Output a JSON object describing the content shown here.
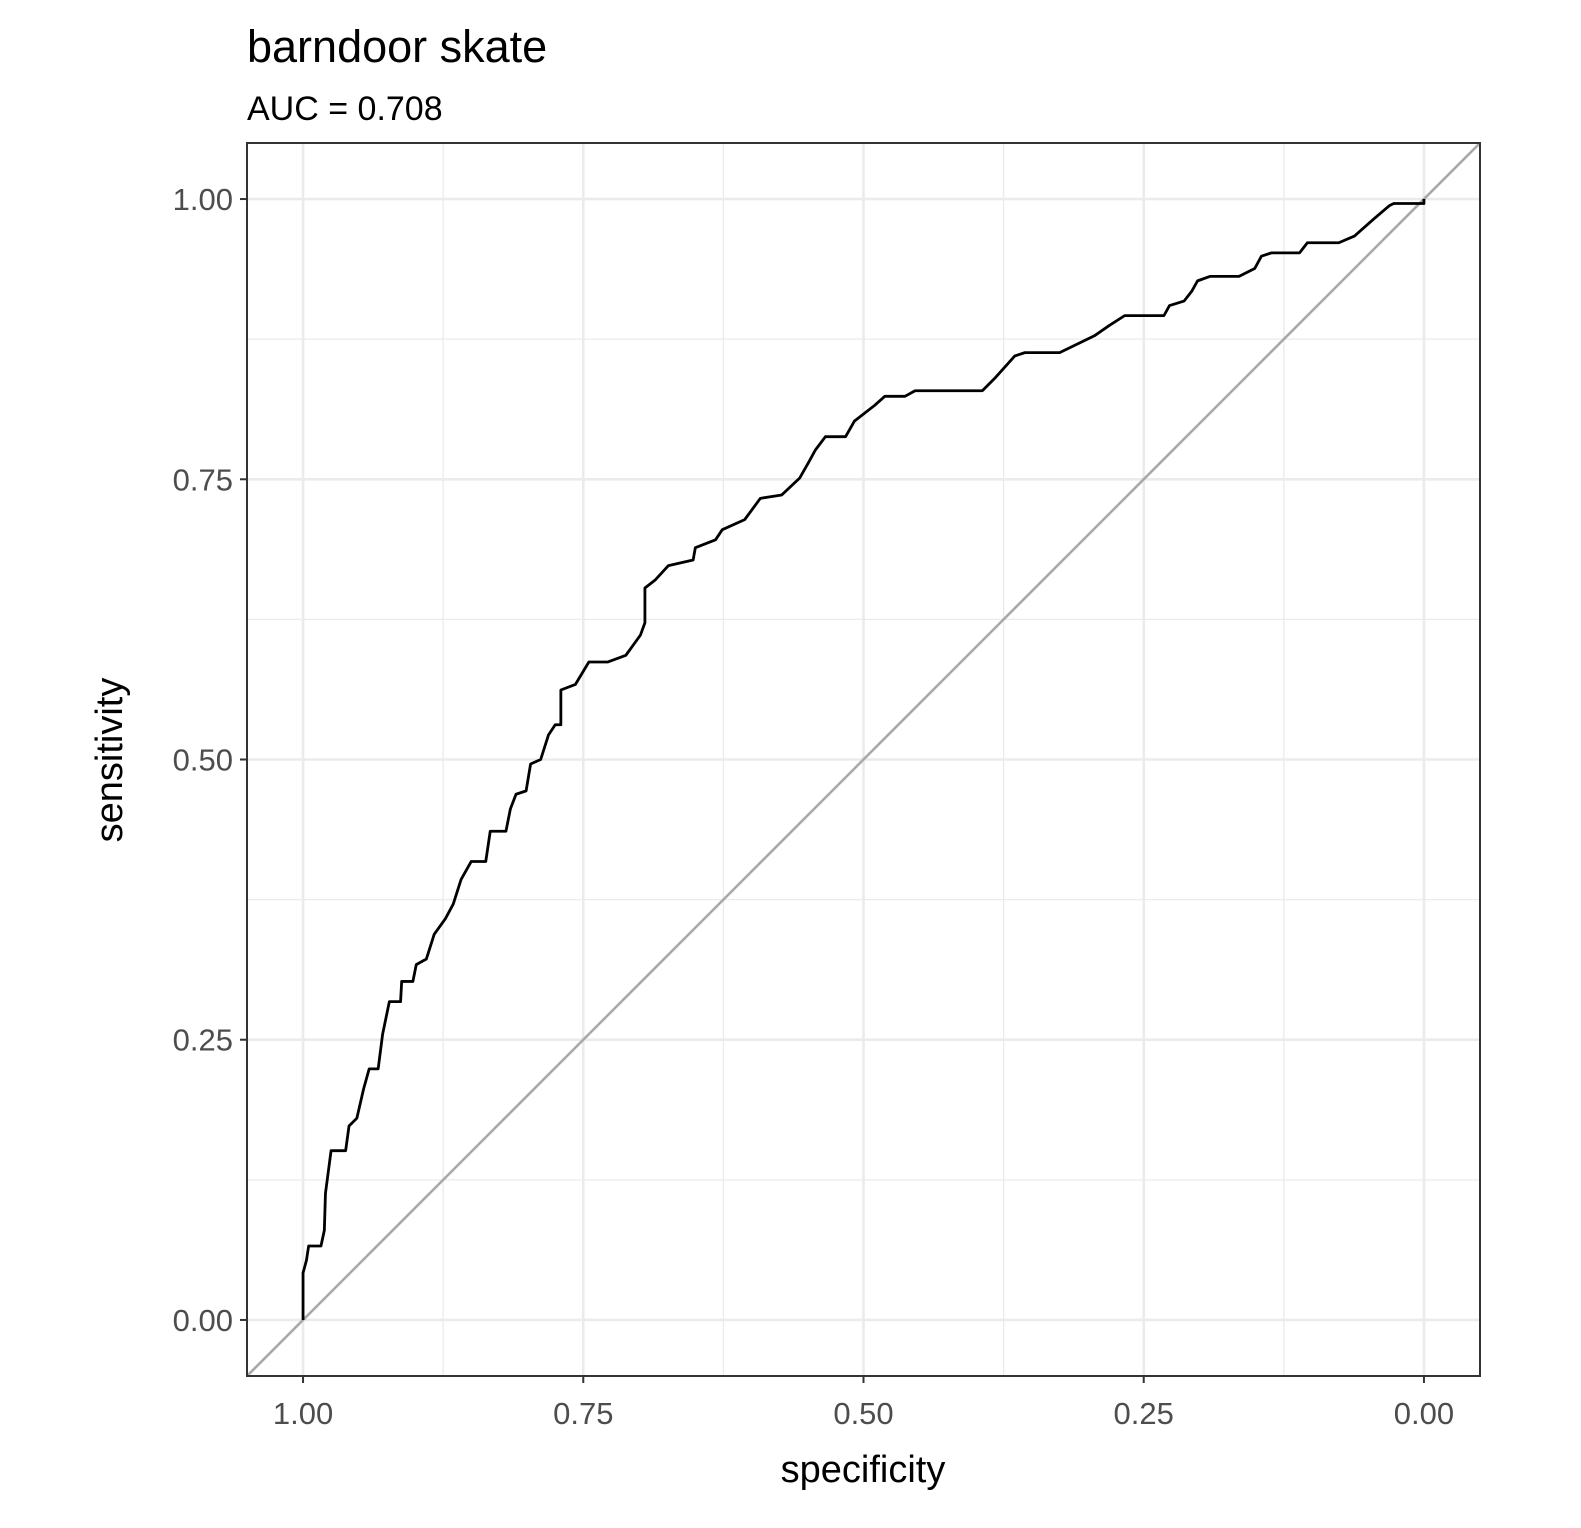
{
  "chart_data": {
    "type": "line",
    "title": "barndoor skate",
    "subtitle": "AUC = 0.708",
    "x_label": "specificity",
    "y_label": "sensitivity",
    "x": [
      1.0,
      1.0,
      0.997,
      0.995,
      0.984,
      0.981,
      0.98,
      0.975,
      0.962,
      0.959,
      0.952,
      0.946,
      0.941,
      0.933,
      0.929,
      0.923,
      0.913,
      0.912,
      0.902,
      0.899,
      0.89,
      0.883,
      0.873,
      0.866,
      0.859,
      0.85,
      0.837,
      0.833,
      0.819,
      0.815,
      0.81,
      0.801,
      0.797,
      0.788,
      0.781,
      0.775,
      0.77,
      0.77,
      0.757,
      0.745,
      0.728,
      0.712,
      0.699,
      0.695,
      0.695,
      0.686,
      0.674,
      0.652,
      0.65,
      0.632,
      0.626,
      0.606,
      0.592,
      0.573,
      0.557,
      0.549,
      0.543,
      0.534,
      0.516,
      0.508,
      0.49,
      0.481,
      0.463,
      0.454,
      0.394,
      0.383,
      0.365,
      0.356,
      0.325,
      0.294,
      0.281,
      0.267,
      0.232,
      0.227,
      0.214,
      0.207,
      0.202,
      0.191,
      0.165,
      0.151,
      0.145,
      0.136,
      0.111,
      0.104,
      0.076,
      0.062,
      0.045,
      0.031,
      0.027,
      0.0,
      0.0
    ],
    "values": [
      0,
      0.042,
      0.053,
      0.066,
      0.066,
      0.08,
      0.113,
      0.151,
      0.151,
      0.173,
      0.18,
      0.206,
      0.224,
      0.224,
      0.255,
      0.284,
      0.284,
      0.302,
      0.302,
      0.317,
      0.322,
      0.344,
      0.358,
      0.371,
      0.393,
      0.409,
      0.409,
      0.436,
      0.436,
      0.456,
      0.469,
      0.472,
      0.496,
      0.5,
      0.522,
      0.531,
      0.531,
      0.562,
      0.567,
      0.587,
      0.587,
      0.593,
      0.611,
      0.622,
      0.653,
      0.66,
      0.673,
      0.678,
      0.689,
      0.696,
      0.705,
      0.714,
      0.733,
      0.736,
      0.751,
      0.765,
      0.776,
      0.788,
      0.788,
      0.802,
      0.816,
      0.824,
      0.824,
      0.829,
      0.829,
      0.84,
      0.86,
      0.863,
      0.863,
      0.878,
      0.887,
      0.896,
      0.896,
      0.905,
      0.909,
      0.918,
      0.927,
      0.931,
      0.931,
      0.938,
      0.949,
      0.952,
      0.952,
      0.961,
      0.961,
      0.967,
      0.982,
      0.994,
      0.996,
      0.996,
      1.0
    ],
    "color": "#000000",
    "reference_line": {
      "slope": -1,
      "intercept": 1,
      "color": "#aaaaaa"
    },
    "xlim": [
      1.05,
      -0.05
    ],
    "ylim": [
      -0.05,
      1.05
    ],
    "xticks": [
      {
        "value": 1,
        "label": "1.00"
      },
      {
        "value": 0.75,
        "label": "0.75"
      },
      {
        "value": 0.5,
        "label": "0.50"
      },
      {
        "value": 0.25,
        "label": "0.25"
      },
      {
        "value": 0,
        "label": "0.00"
      }
    ],
    "yticks": [
      {
        "value": 0,
        "label": "0.00"
      },
      {
        "value": 0.25,
        "label": "0.25"
      },
      {
        "value": 0.5,
        "label": "0.50"
      },
      {
        "value": 0.75,
        "label": "0.75"
      },
      {
        "value": 1,
        "label": "1.00"
      }
    ],
    "x_minor_ticks": [
      0.875,
      0.625,
      0.375,
      0.125
    ],
    "y_minor_ticks": [
      0.125,
      0.375,
      0.625,
      0.875
    ],
    "grid": true
  }
}
